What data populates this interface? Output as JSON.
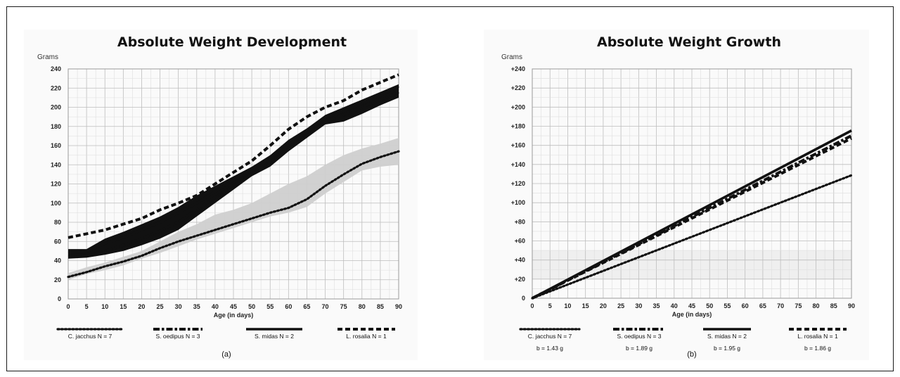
{
  "chart_data": [
    {
      "type": "line",
      "title": "Absolute Weight Development",
      "ylabel": "Grams",
      "xlabel": "Age (in days)",
      "caption": "(a)",
      "xlim": [
        0,
        90
      ],
      "ylim": [
        0,
        240
      ],
      "xticks": [
        "0",
        "5",
        "10",
        "15",
        "20",
        "25",
        "30",
        "35",
        "40",
        "45",
        "50",
        "55",
        "60",
        "65",
        "70",
        "75",
        "80",
        "85",
        "90"
      ],
      "yticks": [
        "0",
        "20",
        "40",
        "60",
        "80",
        "100",
        "120",
        "140",
        "160",
        "180",
        "200",
        "220",
        "240"
      ],
      "grid": true,
      "bands": [
        {
          "series": "C. jacchus",
          "color": "#cfcfcf",
          "x": [
            0,
            5,
            10,
            15,
            20,
            25,
            30,
            35,
            40,
            45,
            50,
            55,
            60,
            65,
            70,
            75,
            80,
            85,
            90
          ],
          "low": [
            20,
            26,
            30,
            35,
            42,
            48,
            55,
            62,
            68,
            74,
            80,
            86,
            90,
            96,
            110,
            122,
            134,
            138,
            140
          ],
          "high": [
            27,
            33,
            38,
            44,
            50,
            60,
            70,
            78,
            88,
            93,
            100,
            110,
            120,
            128,
            140,
            150,
            157,
            162,
            168
          ]
        },
        {
          "series": "S. oedipus / S. midas",
          "color": "#111111",
          "x": [
            0,
            5,
            10,
            15,
            20,
            25,
            30,
            35,
            40,
            45,
            50,
            55,
            60,
            65,
            70,
            75,
            80,
            85,
            90
          ],
          "low": [
            42,
            43,
            46,
            50,
            56,
            63,
            72,
            86,
            100,
            114,
            128,
            138,
            154,
            168,
            182,
            185,
            193,
            202,
            210
          ],
          "high": [
            52,
            52,
            63,
            70,
            78,
            86,
            96,
            108,
            118,
            128,
            138,
            150,
            166,
            178,
            192,
            200,
            208,
            216,
            224
          ]
        }
      ],
      "series": [
        {
          "name": "C. jacchus",
          "style": "dotted",
          "color": "#111111",
          "x": [
            0,
            5,
            10,
            15,
            20,
            25,
            30,
            35,
            40,
            45,
            50,
            55,
            60,
            65,
            70,
            75,
            80,
            85,
            90
          ],
          "y": [
            23,
            28,
            34,
            39,
            45,
            53,
            60,
            66,
            72,
            78,
            84,
            90,
            95,
            104,
            118,
            130,
            141,
            148,
            154
          ]
        },
        {
          "name": "S. oedipus",
          "style": "dash-dot",
          "color": "#111111",
          "x": [
            0,
            5,
            10,
            15,
            20,
            25,
            30,
            35,
            40,
            45,
            50,
            55,
            60,
            65,
            70,
            75,
            80,
            85,
            90
          ],
          "y": [
            44,
            45,
            50,
            56,
            63,
            71,
            80,
            93,
            106,
            118,
            130,
            141,
            156,
            170,
            185,
            192,
            200,
            208,
            216
          ]
        },
        {
          "name": "S. midas",
          "style": "solid",
          "color": "#111111",
          "x": [
            0,
            5,
            10,
            15,
            20,
            25,
            30,
            35,
            40,
            45,
            50,
            55,
            60,
            65,
            70,
            75,
            80,
            85,
            90
          ],
          "y": [
            48,
            49,
            58,
            64,
            72,
            80,
            90,
            100,
            112,
            124,
            134,
            146,
            161,
            174,
            189,
            196,
            204,
            212,
            222
          ]
        },
        {
          "name": "L. rosalia",
          "style": "dashed",
          "color": "#111111",
          "x": [
            0,
            5,
            10,
            15,
            20,
            25,
            30,
            35,
            40,
            45,
            50,
            55,
            60,
            65,
            70,
            75,
            80,
            85,
            90
          ],
          "y": [
            64,
            68,
            72,
            78,
            84,
            93,
            100,
            108,
            120,
            132,
            144,
            160,
            177,
            190,
            200,
            207,
            218,
            226,
            234
          ]
        }
      ],
      "legend": [
        {
          "series": "C. jacchus",
          "style": "dotted",
          "label": "C. jacchus N = 7"
        },
        {
          "series": "S. oedipus",
          "style": "dash-dot",
          "label": "S. oedipus N = 3"
        },
        {
          "series": "S. midas",
          "style": "solid",
          "label": "S. midas N = 2"
        },
        {
          "series": "L. rosalia",
          "style": "dashed",
          "label": "L. rosalia N = 1"
        }
      ]
    },
    {
      "type": "line",
      "title": "Absolute Weight Growth",
      "ylabel": "Grams",
      "xlabel": "Age (in days)",
      "caption": "(b)",
      "xlim": [
        0,
        90
      ],
      "ylim": [
        0,
        240
      ],
      "xticks": [
        "0",
        "5",
        "10",
        "15",
        "20",
        "25",
        "30",
        "35",
        "40",
        "45",
        "50",
        "55",
        "60",
        "65",
        "70",
        "75",
        "80",
        "85",
        "90"
      ],
      "yticks": [
        "0",
        "+20",
        "+40",
        "+60",
        "+80",
        "+100",
        "+120",
        "+140",
        "+160",
        "+180",
        "+200",
        "+220",
        "+240"
      ],
      "grid": true,
      "series": [
        {
          "name": "C. jacchus",
          "style": "dotted",
          "color": "#111111",
          "slope": 1.43,
          "x": [
            0,
            90
          ],
          "y": [
            0,
            128.7
          ]
        },
        {
          "name": "S. oedipus",
          "style": "dash-dot",
          "color": "#111111",
          "slope": 1.89,
          "x": [
            0,
            90
          ],
          "y": [
            0,
            170.1
          ]
        },
        {
          "name": "S. midas",
          "style": "solid",
          "color": "#111111",
          "slope": 1.95,
          "x": [
            0,
            90
          ],
          "y": [
            0,
            175.5
          ]
        },
        {
          "name": "L. rosalia",
          "style": "dashed",
          "color": "#111111",
          "slope": 1.86,
          "x": [
            0,
            90
          ],
          "y": [
            0,
            167.4
          ]
        }
      ],
      "legend": [
        {
          "series": "C. jacchus",
          "style": "dotted",
          "label": "C. jacchus N = 7",
          "slope_label": "b = 1.43 g"
        },
        {
          "series": "S. oedipus",
          "style": "dash-dot",
          "label": "S. oedipus N = 3",
          "slope_label": "b = 1.89 g"
        },
        {
          "series": "S. midas",
          "style": "solid",
          "label": "S. midas N = 2",
          "slope_label": "b = 1.95 g"
        },
        {
          "series": "L. rosalia",
          "style": "dashed",
          "label": "L. rosalia N = 1",
          "slope_label": "b = 1.86 g"
        }
      ]
    }
  ]
}
